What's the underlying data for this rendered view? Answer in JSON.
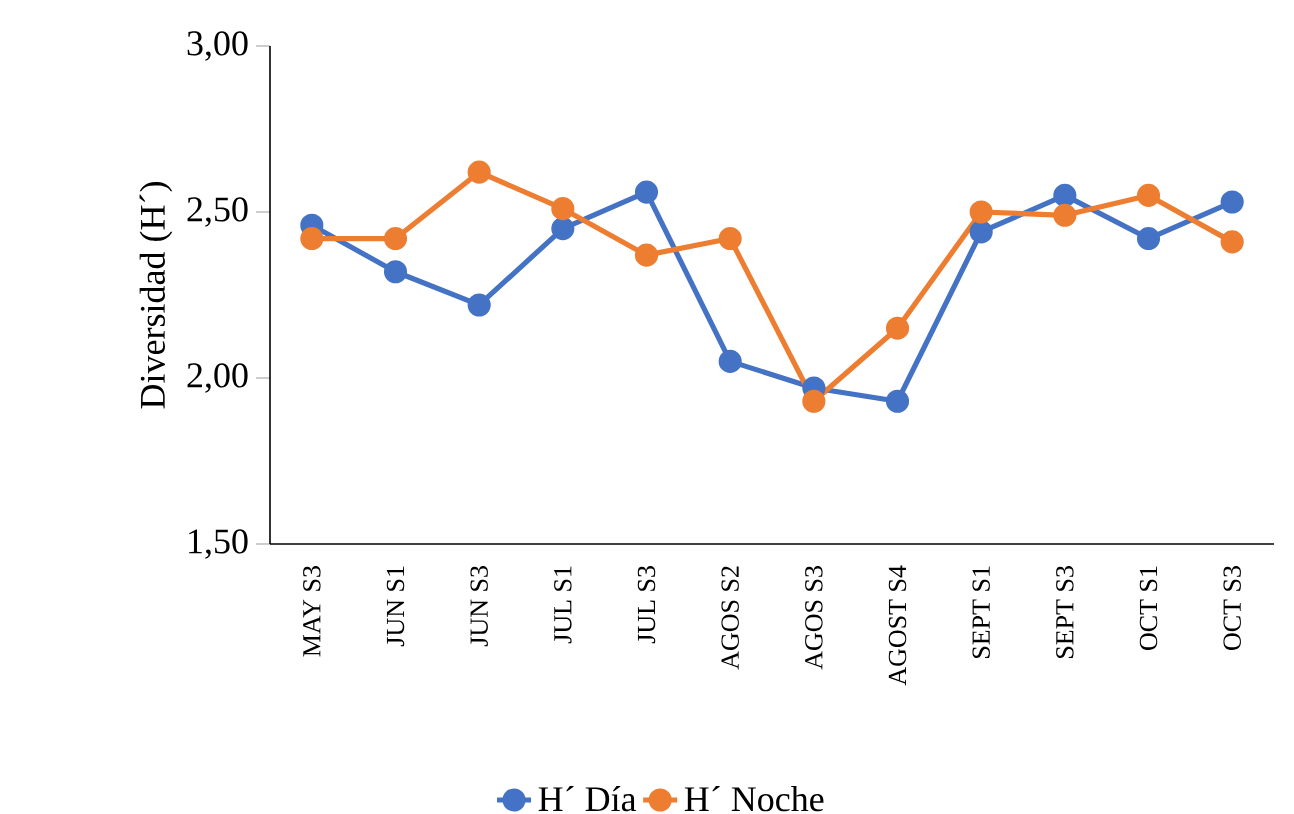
{
  "chart_data": {
    "type": "line",
    "ylabel": "Diversidad (H´)",
    "categories": [
      "MAY S3",
      "JUN S1",
      "JUN S3",
      "JUL S1",
      "JUL S3",
      "AGOS S2",
      "AGOS S3",
      "AGOST S4",
      "SEPT S1",
      "SEPT S3",
      "OCT S1",
      "OCT S3"
    ],
    "series": [
      {
        "name": "H´ Día",
        "color": "#4472c4",
        "values": [
          2.46,
          2.32,
          2.22,
          2.45,
          2.56,
          2.05,
          1.97,
          1.93,
          2.44,
          2.55,
          2.42,
          2.53
        ]
      },
      {
        "name": "H´ Noche",
        "color": "#ed7d31",
        "values": [
          2.42,
          2.42,
          2.62,
          2.51,
          2.37,
          2.42,
          1.93,
          2.15,
          2.5,
          2.49,
          2.55,
          2.41
        ]
      }
    ],
    "ylim": [
      1.5,
      3.0
    ],
    "yticks": [
      {
        "value": 1.5,
        "label": "1,50"
      },
      {
        "value": 2.0,
        "label": "2,00"
      },
      {
        "value": 2.5,
        "label": "2,50"
      },
      {
        "value": 3.0,
        "label": "3,00"
      }
    ],
    "grid": false,
    "legend": "bottom",
    "marker": "circle",
    "line_style": "solid"
  }
}
